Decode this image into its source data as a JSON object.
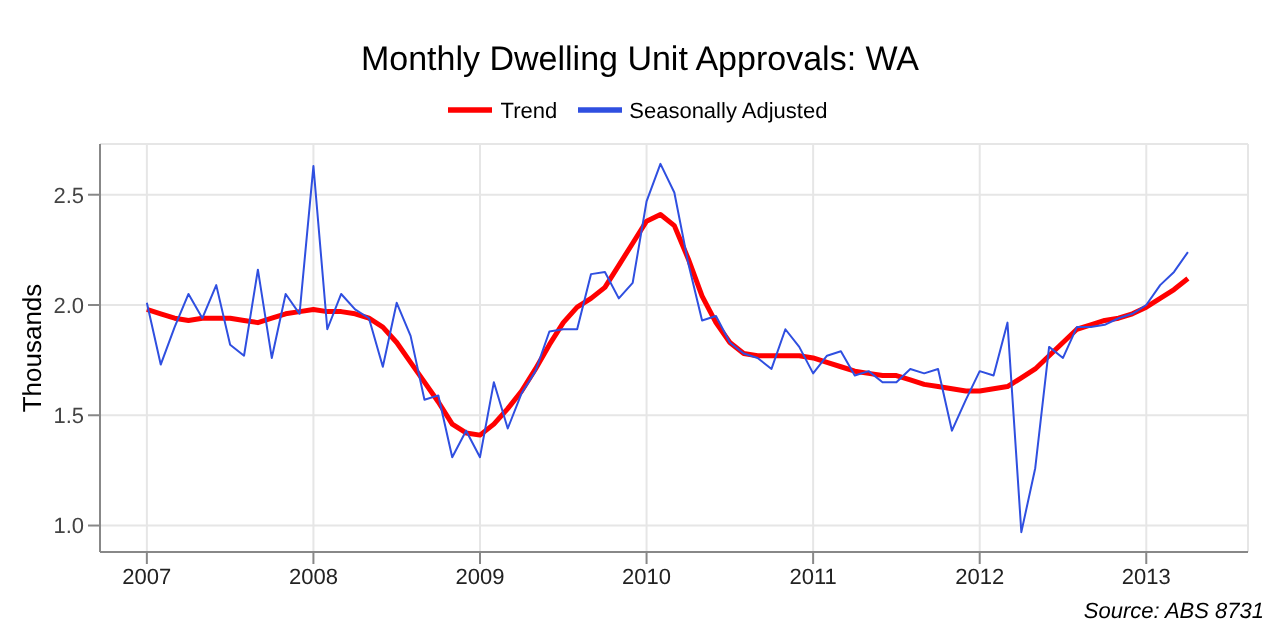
{
  "chart_data": {
    "type": "line",
    "title": "Monthly Dwelling Unit Approvals: WA",
    "ylabel": "Thousands",
    "annotations": [
      "Source: ABS 8731"
    ],
    "x": [
      "2007-01",
      "2007-02",
      "2007-03",
      "2007-04",
      "2007-05",
      "2007-06",
      "2007-07",
      "2007-08",
      "2007-09",
      "2007-10",
      "2007-11",
      "2007-12",
      "2008-01",
      "2008-02",
      "2008-03",
      "2008-04",
      "2008-05",
      "2008-06",
      "2008-07",
      "2008-08",
      "2008-09",
      "2008-10",
      "2008-11",
      "2008-12",
      "2009-01",
      "2009-02",
      "2009-03",
      "2009-04",
      "2009-05",
      "2009-06",
      "2009-07",
      "2009-08",
      "2009-09",
      "2009-10",
      "2009-11",
      "2009-12",
      "2010-01",
      "2010-02",
      "2010-03",
      "2010-04",
      "2010-05",
      "2010-06",
      "2010-07",
      "2010-08",
      "2010-09",
      "2010-10",
      "2010-11",
      "2010-12",
      "2011-01",
      "2011-02",
      "2011-03",
      "2011-04",
      "2011-05",
      "2011-06",
      "2011-07",
      "2011-08",
      "2011-09",
      "2011-10",
      "2011-11",
      "2011-12",
      "2012-01",
      "2012-02",
      "2012-03",
      "2012-04",
      "2012-05",
      "2012-06",
      "2012-07",
      "2012-08",
      "2012-09",
      "2012-10",
      "2012-11",
      "2012-12",
      "2013-01",
      "2013-02",
      "2013-03",
      "2013-04"
    ],
    "series": [
      {
        "name": "Trend",
        "color": "#ff0000",
        "values": [
          1.98,
          1.96,
          1.94,
          1.93,
          1.94,
          1.94,
          1.94,
          1.93,
          1.92,
          1.94,
          1.96,
          1.97,
          1.98,
          1.97,
          1.97,
          1.96,
          1.94,
          1.9,
          1.83,
          1.74,
          1.65,
          1.56,
          1.46,
          1.42,
          1.41,
          1.46,
          1.53,
          1.61,
          1.71,
          1.82,
          1.92,
          1.99,
          2.03,
          2.08,
          2.18,
          2.28,
          2.38,
          2.41,
          2.36,
          2.21,
          2.04,
          1.92,
          1.83,
          1.78,
          1.77,
          1.77,
          1.77,
          1.77,
          1.76,
          1.74,
          1.72,
          1.7,
          1.69,
          1.68,
          1.68,
          1.66,
          1.64,
          1.63,
          1.62,
          1.61,
          1.61,
          1.62,
          1.63,
          1.67,
          1.71,
          1.77,
          1.83,
          1.89,
          1.91,
          1.93,
          1.94,
          1.96,
          1.99,
          2.03,
          2.07,
          2.12
        ]
      },
      {
        "name": "Seasonally Adjusted",
        "color": "#2f4fe0",
        "values": [
          2.01,
          1.73,
          1.9,
          2.05,
          1.94,
          2.09,
          1.82,
          1.77,
          2.16,
          1.76,
          2.05,
          1.96,
          2.63,
          1.89,
          2.05,
          1.98,
          1.94,
          1.72,
          2.01,
          1.86,
          1.57,
          1.59,
          1.31,
          1.43,
          1.31,
          1.65,
          1.44,
          1.6,
          1.7,
          1.88,
          1.89,
          1.89,
          2.14,
          2.15,
          2.03,
          2.1,
          2.47,
          2.64,
          2.51,
          2.19,
          1.93,
          1.95,
          1.83,
          1.78,
          1.76,
          1.71,
          1.89,
          1.81,
          1.69,
          1.77,
          1.79,
          1.68,
          1.7,
          1.65,
          1.65,
          1.71,
          1.69,
          1.71,
          1.43,
          1.57,
          1.7,
          1.68,
          1.92,
          0.97,
          1.26,
          1.81,
          1.76,
          1.9,
          1.9,
          1.91,
          1.94,
          1.96,
          2.0,
          2.09,
          2.15,
          2.24
        ]
      }
    ],
    "xlim": [
      "2006-09-20",
      "2013-08-11"
    ],
    "xticks": [
      "2007",
      "2008",
      "2009",
      "2010",
      "2011",
      "2012",
      "2013"
    ],
    "ylim": [
      0.88,
      2.73
    ],
    "yticks": [
      {
        "value": 1,
        "label": "1.0"
      },
      {
        "value": 1.5,
        "label": "1.5"
      },
      {
        "value": 2,
        "label": "2.0"
      },
      {
        "value": 2.5,
        "label": "2.5"
      }
    ],
    "grid": true,
    "legend": "top",
    "marker": "none",
    "line_style": "solid"
  }
}
